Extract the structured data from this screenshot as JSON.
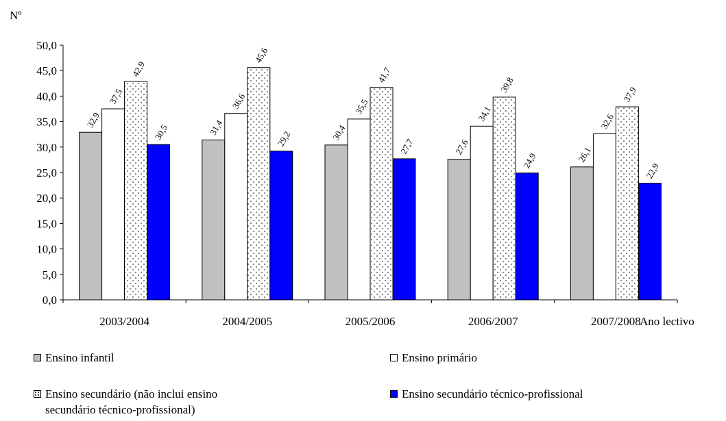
{
  "chart_data": {
    "type": "bar",
    "ylabel": "Nº",
    "xlabel": "Ano lectivo",
    "ylim": [
      0,
      50
    ],
    "y_ticks": [
      "0,0",
      "5,0",
      "10,0",
      "15,0",
      "20,0",
      "25,0",
      "30,0",
      "35,0",
      "40,0",
      "45,0",
      "50,0"
    ],
    "categories": [
      "2003/2004",
      "2004/2005",
      "2005/2006",
      "2006/2007",
      "2007/2008"
    ],
    "series": [
      {
        "name": "Ensino infantil",
        "fill": "#c0c0c0",
        "pattern": "solid",
        "values": [
          32.9,
          31.4,
          30.4,
          27.6,
          26.1
        ],
        "labels": [
          "32,9",
          "31,4",
          "30,4",
          "27,6",
          "26,1"
        ]
      },
      {
        "name": "Ensino primário",
        "fill": "#ffffff",
        "pattern": "solid",
        "values": [
          37.5,
          36.6,
          35.5,
          34.1,
          32.6
        ],
        "labels": [
          "37,5",
          "36,6",
          "35,5",
          "34,1",
          "32,6"
        ]
      },
      {
        "name": "Ensino secundário (não inclui ensino secundário técnico-profissional)",
        "fill": "#ffffff",
        "pattern": "dots",
        "values": [
          42.9,
          45.6,
          41.7,
          39.8,
          37.9
        ],
        "labels": [
          "42,9",
          "45,6",
          "41,7",
          "39,8",
          "37,9"
        ]
      },
      {
        "name": "Ensino secundário técnico-profissional",
        "fill": "#0000ff",
        "pattern": "solid",
        "values": [
          30.5,
          29.2,
          27.7,
          24.9,
          22.9
        ],
        "labels": [
          "30,5",
          "29,2",
          "27,7",
          "24,9",
          "22,9"
        ]
      }
    ],
    "legend_position": "bottom",
    "grid": false
  },
  "legend": {
    "item1": {
      "line1": "Ensino infantil"
    },
    "item2": {
      "line1": "Ensino primário"
    },
    "item3": {
      "line1": "Ensino secundário (não inclui ensino",
      "line2": "secundário técnico-profissional)"
    },
    "item4": {
      "line1": "Ensino secundário técnico-profissional"
    }
  }
}
